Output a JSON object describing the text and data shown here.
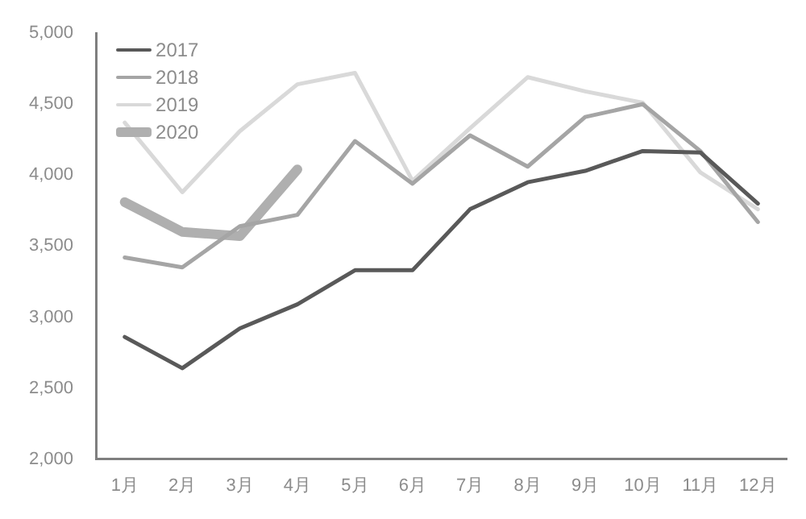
{
  "chart_data": {
    "type": "line",
    "categories": [
      "1月",
      "2月",
      "3月",
      "4月",
      "5月",
      "6月",
      "7月",
      "8月",
      "9月",
      "10月",
      "11月",
      "12月"
    ],
    "series": [
      {
        "name": "2017",
        "color": "#595959",
        "values": [
          2860,
          2640,
          2920,
          3090,
          3330,
          3330,
          3760,
          3950,
          4030,
          4170,
          4160,
          3800
        ]
      },
      {
        "name": "2018",
        "color": "#a5a5a5",
        "values": [
          3420,
          3350,
          3640,
          3720,
          4240,
          3940,
          4280,
          4060,
          4410,
          4500,
          4170,
          3670
        ]
      },
      {
        "name": "2019",
        "color": "#d9d9d9",
        "values": [
          4370,
          3880,
          4310,
          4640,
          4720,
          3960,
          4330,
          4690,
          4590,
          4510,
          4020,
          3760
        ]
      },
      {
        "name": "2020",
        "color": "#afafaf",
        "values": [
          3810,
          3600,
          3570,
          4040,
          null,
          null,
          null,
          null,
          null,
          null,
          null,
          null
        ]
      }
    ],
    "ylim": [
      2000,
      5000
    ],
    "yticks": [
      {
        "value": 2000,
        "label": "2,000"
      },
      {
        "value": 2500,
        "label": "2,500"
      },
      {
        "value": 3000,
        "label": "3,000"
      },
      {
        "value": 3500,
        "label": "3,500"
      },
      {
        "value": 4000,
        "label": "4,000"
      },
      {
        "value": 4500,
        "label": "4,500"
      },
      {
        "value": 5000,
        "label": "5,000"
      }
    ],
    "grid": false,
    "legend": "top left",
    "marker": "none"
  }
}
